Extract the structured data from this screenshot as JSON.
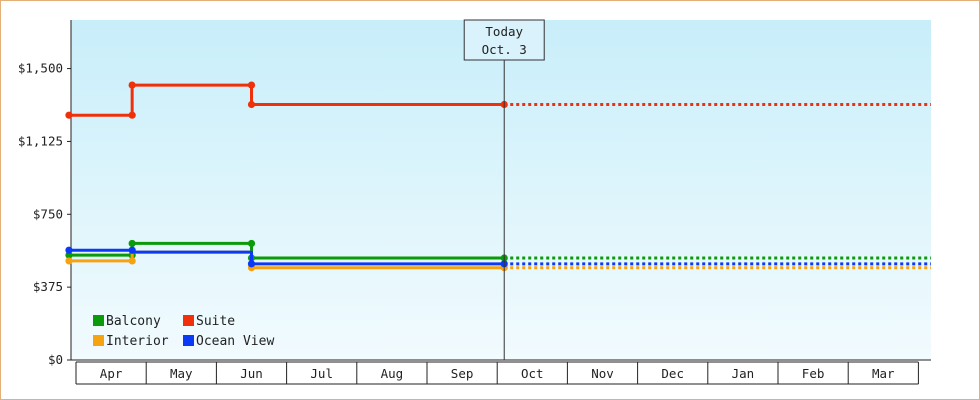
{
  "chart_data": {
    "type": "line",
    "step": true,
    "title": "",
    "xlabel": "",
    "ylabel": "",
    "ylim": [
      0,
      1750
    ],
    "yticks": [
      0,
      375,
      750,
      1125,
      1500
    ],
    "ytick_labels": [
      "$0",
      "$375",
      "$750",
      "$1,125",
      "$1,500"
    ],
    "x_months": [
      "Apr",
      "May",
      "Jun",
      "Jul",
      "Aug",
      "Sep",
      "Oct",
      "Nov",
      "Dec",
      "Jan",
      "Feb",
      "Mar"
    ],
    "x_unit": "months since Apr 1",
    "today": {
      "line1": "Today",
      "line2": "Oct. 3",
      "x": 6.1
    },
    "x_end": 12.3,
    "grid": false,
    "legend_position": "bottom-left",
    "series": [
      {
        "name": "Balcony",
        "color": "#0a9a0a",
        "points": [
          [
            -0.1,
            540
          ],
          [
            0.8,
            540
          ],
          [
            0.8,
            600
          ],
          [
            2.5,
            600
          ],
          [
            2.5,
            525
          ],
          [
            6.1,
            525
          ]
        ],
        "markers": [
          [
            -0.1,
            540
          ],
          [
            0.8,
            540
          ],
          [
            0.8,
            600
          ],
          [
            2.5,
            600
          ],
          [
            2.5,
            525
          ],
          [
            6.1,
            525
          ]
        ],
        "projected": 525
      },
      {
        "name": "Suite",
        "color": "#f0300a",
        "points": [
          [
            -0.1,
            1260
          ],
          [
            0.8,
            1260
          ],
          [
            0.8,
            1415
          ],
          [
            2.5,
            1415
          ],
          [
            2.5,
            1315
          ],
          [
            6.1,
            1315
          ]
        ],
        "markers": [
          [
            -0.1,
            1260
          ],
          [
            0.8,
            1260
          ],
          [
            0.8,
            1415
          ],
          [
            2.5,
            1415
          ],
          [
            2.5,
            1315
          ],
          [
            6.1,
            1315
          ]
        ],
        "projected": 1315
      },
      {
        "name": "Interior",
        "color": "#f5a310",
        "points": [
          [
            -0.1,
            510
          ],
          [
            0.8,
            510
          ],
          [
            0.8,
            555
          ],
          [
            2.5,
            555
          ],
          [
            2.5,
            475
          ],
          [
            6.1,
            475
          ]
        ],
        "markers": [
          [
            -0.1,
            510
          ],
          [
            0.8,
            510
          ],
          [
            2.5,
            475
          ],
          [
            6.1,
            475
          ]
        ],
        "projected": 475
      },
      {
        "name": "Ocean View",
        "color": "#0a3af5",
        "points": [
          [
            -0.1,
            565
          ],
          [
            0.8,
            565
          ],
          [
            0.8,
            555
          ],
          [
            2.5,
            555
          ],
          [
            2.5,
            495
          ],
          [
            6.1,
            495
          ]
        ],
        "markers": [
          [
            -0.1,
            565
          ],
          [
            0.8,
            565
          ],
          [
            2.5,
            495
          ],
          [
            6.1,
            495
          ]
        ],
        "projected": 495
      }
    ]
  }
}
